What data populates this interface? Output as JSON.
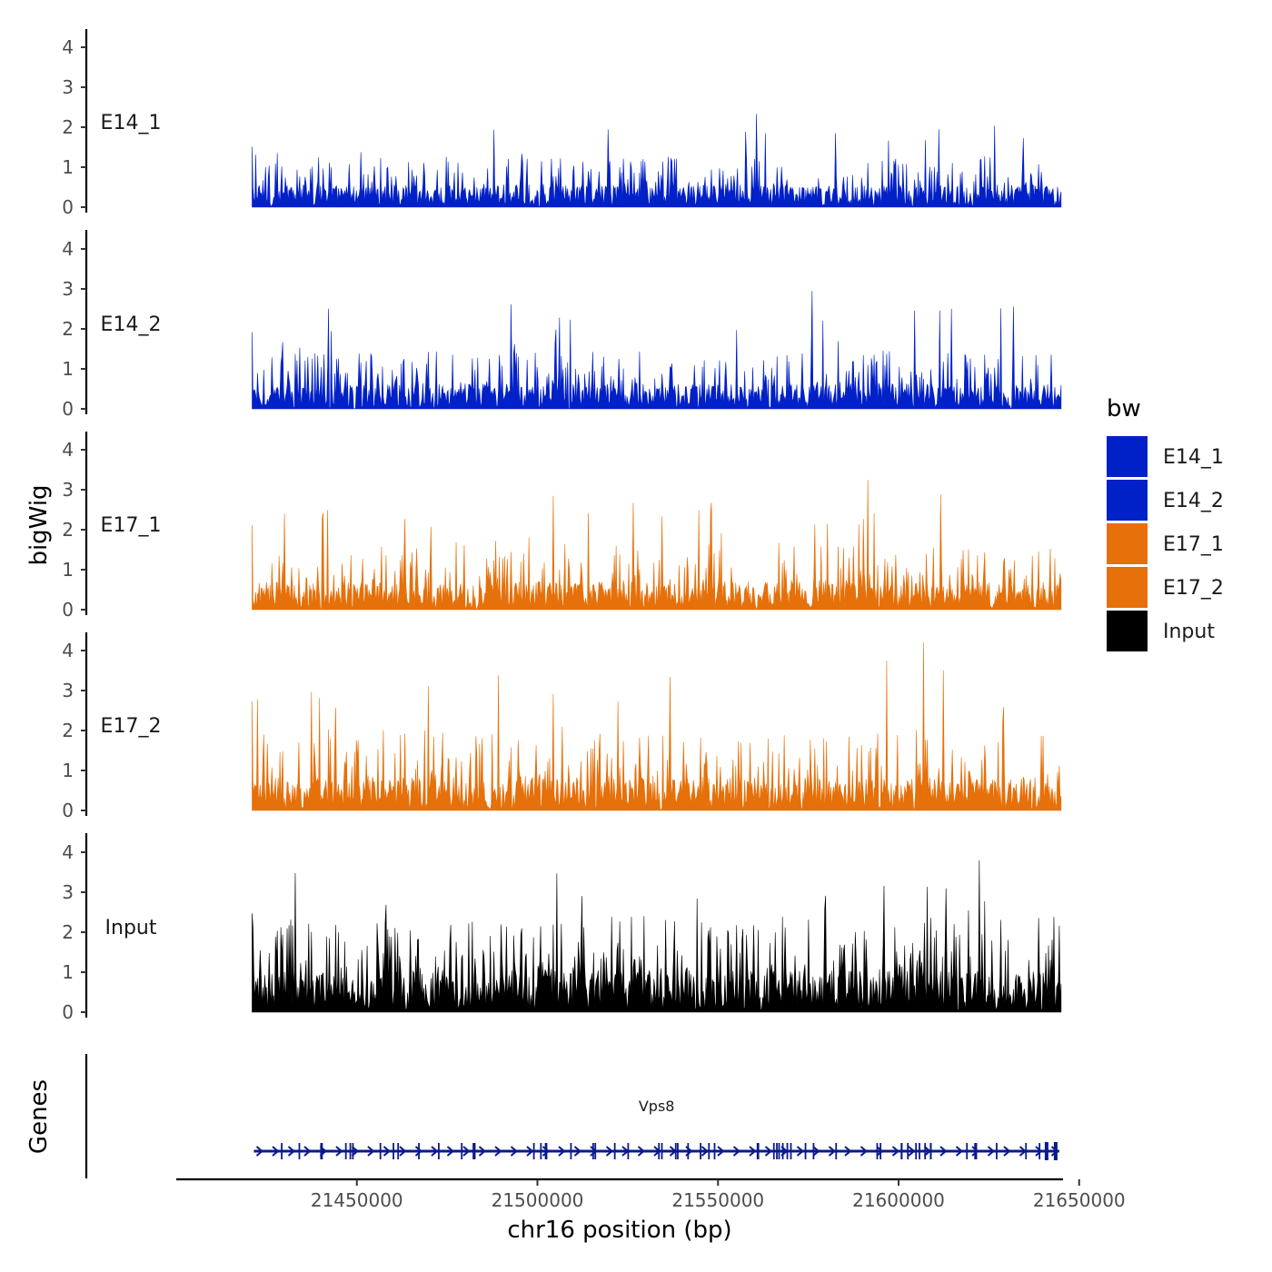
{
  "chart_data": {
    "type": "area",
    "genome_window": [
      21421000,
      21645000
    ],
    "y_axis_title": "bigWig",
    "x_axis_title": "chr16 position (bp)",
    "x_ticks": [
      21450000,
      21500000,
      21550000,
      21600000,
      21650000
    ],
    "y_ticks": [
      0,
      1,
      2,
      3,
      4
    ],
    "ylim": [
      0,
      4.4
    ],
    "tracks": [
      {
        "name": "E14_1",
        "color": "#0020c8",
        "baseline": 0.4,
        "max": 2.33
      },
      {
        "name": "E14_2",
        "color": "#0020c8",
        "baseline": 0.45,
        "max": 2.95
      },
      {
        "name": "E17_1",
        "color": "#e6700a",
        "baseline": 0.5,
        "max": 3.25
      },
      {
        "name": "E17_2",
        "color": "#e6700a",
        "baseline": 0.6,
        "max": 4.2
      },
      {
        "name": "Input",
        "color": "#000000",
        "baseline": 0.75,
        "max": 3.8
      }
    ],
    "legend": {
      "title": "bw",
      "entries": [
        {
          "label": "E14_1",
          "color": "#0020c8"
        },
        {
          "label": "E14_2",
          "color": "#0020c8"
        },
        {
          "label": "E17_1",
          "color": "#e6700a"
        },
        {
          "label": "E17_2",
          "color": "#e6700a"
        },
        {
          "label": "Input",
          "color": "#000000"
        }
      ]
    },
    "genes": {
      "axis_title": "Genes",
      "items": [
        {
          "name": "Vps8",
          "start": 21421500,
          "end": 21644500,
          "strand": "+",
          "color": "#0a1a8c"
        }
      ]
    }
  }
}
